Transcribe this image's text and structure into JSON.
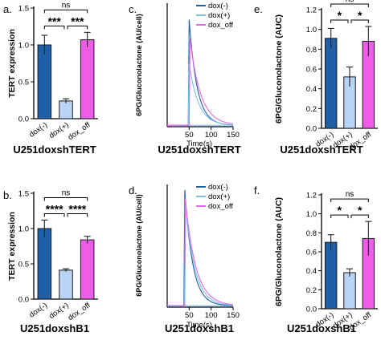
{
  "figure": {
    "panels": [
      "a.",
      "b.",
      "c.",
      "d.",
      "e.",
      "f."
    ]
  },
  "chart_data": [
    {
      "id": "a",
      "panel_label": "a.",
      "type": "bar",
      "categories": [
        "dox(-)",
        "dox(+)",
        "dox_off"
      ],
      "values": [
        1.0,
        0.24,
        1.07
      ],
      "errors": [
        0.13,
        0.03,
        0.1
      ],
      "colors": [
        "#1f5fa6",
        "#b9d3f5",
        "#ef5ce8"
      ],
      "ylabel": "TERT expression",
      "xlabel": "",
      "title": "U251doxshTERT",
      "ylim": [
        0,
        1.5
      ],
      "yticks": [
        "0.0",
        "0.5",
        "1.0",
        "1.5"
      ],
      "significance": [
        {
          "from": 0,
          "to": 1,
          "label": "***",
          "level": 1
        },
        {
          "from": 1,
          "to": 2,
          "label": "***",
          "level": 1
        },
        {
          "from": 0,
          "to": 2,
          "label": "ns",
          "level": 2
        }
      ]
    },
    {
      "id": "b",
      "panel_label": "b.",
      "type": "bar",
      "categories": [
        "dox(-)",
        "dox(+)",
        "dox_off"
      ],
      "values": [
        1.0,
        0.41,
        0.84
      ],
      "errors": [
        0.12,
        0.02,
        0.05
      ],
      "colors": [
        "#1f5fa6",
        "#b9d3f5",
        "#ef5ce8"
      ],
      "ylabel": "TERT expression",
      "xlabel": "",
      "title": "U251doxshB1",
      "ylim": [
        0,
        1.5
      ],
      "yticks": [
        "0.0",
        "0.5",
        "1.0",
        "1.5"
      ],
      "significance": [
        {
          "from": 0,
          "to": 1,
          "label": "****",
          "level": 1
        },
        {
          "from": 1,
          "to": 2,
          "label": "****",
          "level": 1
        },
        {
          "from": 0,
          "to": 2,
          "label": "ns",
          "level": 2
        }
      ]
    },
    {
      "id": "c",
      "panel_label": "c.",
      "type": "line",
      "ylabel": "6PG/Gluconolactone (AU/cell)",
      "xlabel": "Time(s)",
      "title": "U251doxshTERT",
      "xlim": [
        0,
        150
      ],
      "xticks": [
        "50",
        "100",
        "150"
      ],
      "grid": false,
      "legend": "top-right",
      "series": [
        {
          "name": "dox(-)",
          "color": "#1f5fa6",
          "peak": 0.039,
          "peak_time": 50
        },
        {
          "name": "dox(+)",
          "color": "#7fc1e6",
          "peak": 0.023,
          "peak_time": 50
        },
        {
          "name": "dox_off",
          "color": "#e36ae8",
          "peak": 0.032,
          "peak_time": 52
        }
      ]
    },
    {
      "id": "d",
      "panel_label": "d.",
      "type": "line",
      "ylabel": "6PG/Gluconolactone (AU/cell)",
      "xlabel": "Time(s)",
      "title": "U251doxshB1",
      "xlim": [
        0,
        150
      ],
      "xticks": [
        "50",
        "100",
        "150"
      ],
      "grid": false,
      "legend": "top-right",
      "series": [
        {
          "name": "dox(-)",
          "color": "#1f5fa6",
          "peak": 0.043,
          "peak_time": 40
        },
        {
          "name": "dox(+)",
          "color": "#7fc1e6",
          "peak": 0.038,
          "peak_time": 42
        },
        {
          "name": "dox_off",
          "color": "#e36ae8",
          "peak": 0.04,
          "peak_time": 41
        }
      ]
    },
    {
      "id": "e",
      "panel_label": "e.",
      "type": "bar",
      "categories": [
        "dox(-)",
        "dox(+)",
        "dox_off"
      ],
      "values": [
        0.91,
        0.52,
        0.88
      ],
      "errors": [
        0.1,
        0.1,
        0.15
      ],
      "colors": [
        "#1f5fa6",
        "#b9d3f5",
        "#ef5ce8"
      ],
      "ylabel": "6PG/Gluconolactone (AUC)",
      "xlabel": "",
      "title": "U251doxshTERT",
      "ylim": [
        0,
        1.2
      ],
      "yticks": [
        "0.0",
        "0.2",
        "0.4",
        "0.6",
        "0.8",
        "1.0",
        "1.2"
      ],
      "significance": [
        {
          "from": 0,
          "to": 1,
          "label": "*",
          "level": 1
        },
        {
          "from": 1,
          "to": 2,
          "label": "*",
          "level": 1
        },
        {
          "from": 0,
          "to": 2,
          "label": "ns",
          "level": 2
        }
      ]
    },
    {
      "id": "f",
      "panel_label": "f.",
      "type": "bar",
      "categories": [
        "dox(-)",
        "dox(+)",
        "dox_off"
      ],
      "values": [
        0.7,
        0.38,
        0.74
      ],
      "errors": [
        0.08,
        0.04,
        0.18
      ],
      "colors": [
        "#1f5fa6",
        "#b9d3f5",
        "#ef5ce8"
      ],
      "ylabel": "6PG/Gluconolactone (AUC)",
      "xlabel": "",
      "title": "U251doxshB1",
      "ylim": [
        0,
        1.2
      ],
      "yticks": [
        "0.0",
        "0.2",
        "0.4",
        "0.6",
        "0.8",
        "1.0",
        "1.2"
      ],
      "significance": [
        {
          "from": 0,
          "to": 1,
          "label": "*",
          "level": 1
        },
        {
          "from": 1,
          "to": 2,
          "label": "*",
          "level": 1
        },
        {
          "from": 0,
          "to": 2,
          "label": "ns",
          "level": 2
        }
      ]
    }
  ]
}
